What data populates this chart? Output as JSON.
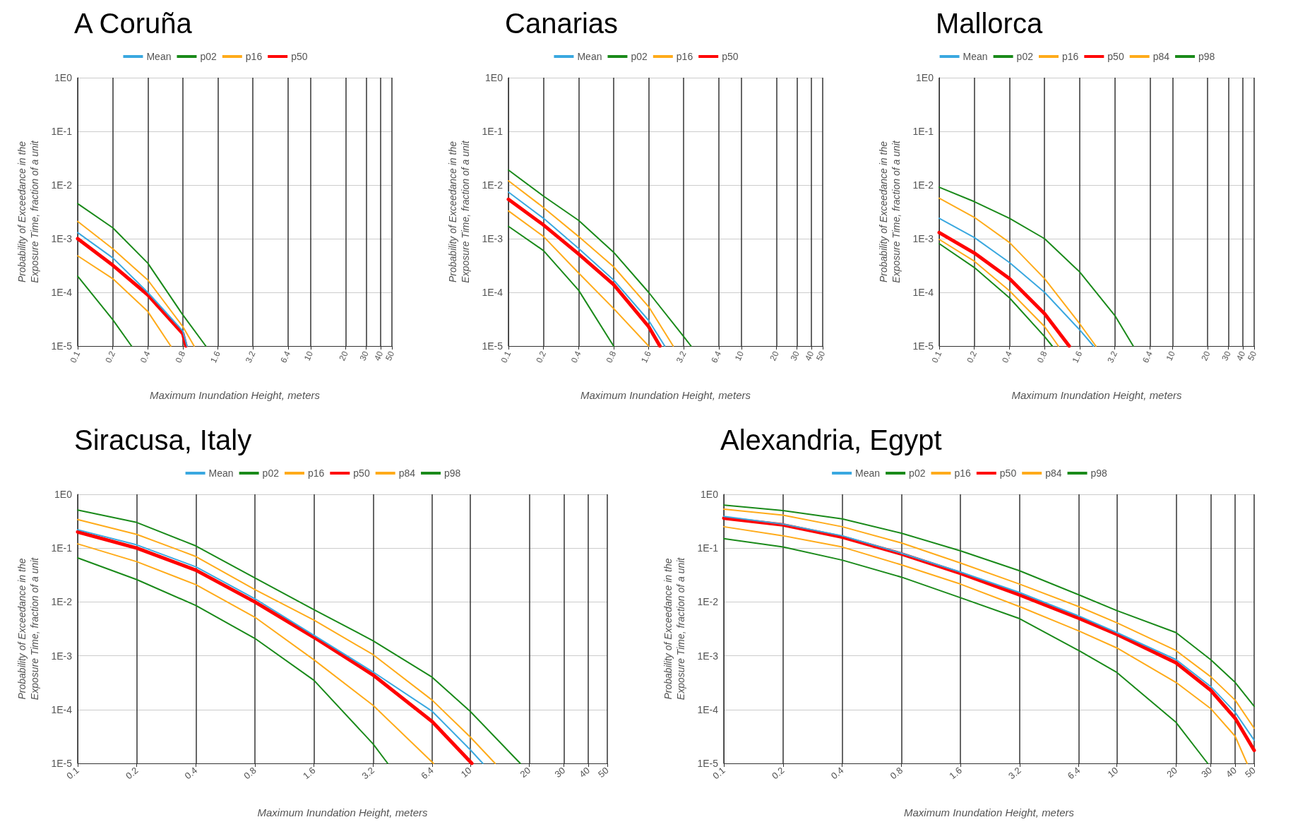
{
  "chart_data": [
    {
      "type": "line",
      "title": "A Coruña",
      "xlabel": "Maximum Inundation Height, meters",
      "ylabel": "Probability of Exceedance in the Exposure Time, fraction of a unit",
      "log": "xy",
      "grid": true,
      "legend": "top",
      "xlim": [
        0.1,
        50
      ],
      "ylim": [
        1e-05,
        1
      ],
      "xticks": [
        0.1,
        0.2,
        0.4,
        0.8,
        1.6,
        3.2,
        6.4,
        10,
        20,
        30,
        40,
        50
      ],
      "yticks": [
        {
          "value": 1,
          "label": "1E0"
        },
        {
          "value": 0.1,
          "label": "1E-1"
        },
        {
          "value": 0.01,
          "label": "1E-2"
        },
        {
          "value": 0.001,
          "label": "1E-3"
        },
        {
          "value": 0.0001,
          "label": "1E-4"
        },
        {
          "value": 1e-05,
          "label": "1E-5"
        }
      ],
      "series": [
        {
          "name": "Mean",
          "color": "#3aa8e0",
          "x": [
            0.1,
            0.2,
            0.4,
            0.8,
            0.87
          ],
          "values": [
            0.0013,
            0.00044,
            0.0001,
            1.9e-05,
            1e-05
          ]
        },
        {
          "name": "p02",
          "color": "#1a8a1a",
          "x": [
            0.1,
            0.2,
            0.29
          ],
          "values": [
            0.0002,
            3.1e-05,
            1e-05
          ]
        },
        {
          "name": "p16",
          "color": "#ffab1a",
          "x": [
            0.1,
            0.2,
            0.4,
            0.63
          ],
          "values": [
            0.00048,
            0.00018,
            4.4e-05,
            1e-05
          ]
        },
        {
          "name": "p50",
          "color": "#ff0000",
          "x": [
            0.1,
            0.2,
            0.4,
            0.8,
            0.85
          ],
          "values": [
            0.001,
            0.00032,
            9e-05,
            1.7e-05,
            1e-05
          ]
        },
        {
          "color": "#ffab1a",
          "x": [
            0.1,
            0.2,
            0.4,
            0.8,
            1.0
          ],
          "values": [
            0.0021,
            0.00065,
            0.00017,
            2.3e-05,
            1e-05
          ]
        },
        {
          "color": "#1a8a1a",
          "x": [
            0.1,
            0.2,
            0.4,
            0.8,
            1.26
          ],
          "values": [
            0.0045,
            0.0016,
            0.00035,
            3.8e-05,
            1e-05
          ]
        }
      ]
    },
    {
      "type": "line",
      "title": "Canarias",
      "xlabel": "Maximum Inundation Height, meters",
      "ylabel": "Probability of Exceedance in the Exposure Time, fraction of a unit",
      "log": "xy",
      "grid": true,
      "legend": "top",
      "xlim": [
        0.1,
        50
      ],
      "ylim": [
        1e-05,
        1
      ],
      "xticks": [
        0.1,
        0.2,
        0.4,
        0.8,
        1.6,
        3.2,
        6.4,
        10,
        20,
        30,
        40,
        50
      ],
      "yticks": [
        {
          "value": 1,
          "label": "1E0"
        },
        {
          "value": 0.1,
          "label": "1E-1"
        },
        {
          "value": 0.01,
          "label": "1E-2"
        },
        {
          "value": 0.001,
          "label": "1E-3"
        },
        {
          "value": 0.0001,
          "label": "1E-4"
        },
        {
          "value": 1e-05,
          "label": "1E-5"
        }
      ],
      "series": [
        {
          "name": "Mean",
          "color": "#3aa8e0",
          "x": [
            0.1,
            0.2,
            0.4,
            0.8,
            1.6,
            2.2
          ],
          "values": [
            0.0074,
            0.0024,
            0.00066,
            0.00017,
            3e-05,
            1e-05
          ]
        },
        {
          "name": "p02",
          "color": "#1a8a1a",
          "x": [
            0.1,
            0.2,
            0.4,
            0.8
          ],
          "values": [
            0.0017,
            0.0006,
            0.00011,
            1e-05
          ]
        },
        {
          "name": "p16",
          "color": "#ffab1a",
          "x": [
            0.1,
            0.2,
            0.4,
            0.8,
            1.6
          ],
          "values": [
            0.0033,
            0.0011,
            0.00023,
            5e-05,
            1e-05
          ]
        },
        {
          "name": "p50",
          "color": "#ff0000",
          "x": [
            0.1,
            0.2,
            0.4,
            0.8,
            1.6,
            2.0
          ],
          "values": [
            0.0054,
            0.0018,
            0.00052,
            0.00014,
            2.3e-05,
            1e-05
          ]
        },
        {
          "color": "#ffab1a",
          "x": [
            0.1,
            0.2,
            0.4,
            0.8,
            1.6,
            2.6
          ],
          "values": [
            0.012,
            0.0038,
            0.0011,
            0.0003,
            5.4e-05,
            1e-05
          ]
        },
        {
          "color": "#1a8a1a",
          "x": [
            0.1,
            0.2,
            0.4,
            0.8,
            1.6,
            3.2,
            3.7
          ],
          "values": [
            0.019,
            0.0062,
            0.0022,
            0.00056,
            0.0001,
            1.5e-05,
            1e-05
          ]
        }
      ]
    },
    {
      "type": "line",
      "title": "Mallorca",
      "xlabel": "Maximum Inundation Height, meters",
      "ylabel": "Probability of Exceedance in the Exposure Time, fraction of a unit",
      "log": "xy",
      "grid": true,
      "legend": "top",
      "xlim": [
        0.1,
        50
      ],
      "ylim": [
        1e-05,
        1
      ],
      "xticks": [
        0.1,
        0.2,
        0.4,
        0.8,
        1.6,
        3.2,
        6.4,
        10,
        20,
        30,
        40,
        50
      ],
      "yticks": [
        {
          "value": 1,
          "label": "1E0"
        },
        {
          "value": 0.1,
          "label": "1E-1"
        },
        {
          "value": 0.01,
          "label": "1E-2"
        },
        {
          "value": 0.001,
          "label": "1E-3"
        },
        {
          "value": 0.0001,
          "label": "1E-4"
        },
        {
          "value": 1e-05,
          "label": "1E-5"
        }
      ],
      "series": [
        {
          "name": "Mean",
          "color": "#3aa8e0",
          "x": [
            0.1,
            0.2,
            0.4,
            0.8,
            1.6,
            2.1
          ],
          "values": [
            0.0024,
            0.00105,
            0.00036,
            0.0001,
            2e-05,
            1e-05
          ]
        },
        {
          "name": "p02",
          "color": "#1a8a1a",
          "x": [
            0.1,
            0.2,
            0.4,
            0.8,
            0.93
          ],
          "values": [
            0.00081,
            0.00029,
            7.9e-05,
            1.5e-05,
            1e-05
          ]
        },
        {
          "name": "p16",
          "color": "#ffab1a",
          "x": [
            0.1,
            0.2,
            0.4,
            0.8,
            1.05
          ],
          "values": [
            0.00097,
            0.00038,
            0.000107,
            2.3e-05,
            1e-05
          ]
        },
        {
          "name": "p50",
          "color": "#ff0000",
          "x": [
            0.1,
            0.2,
            0.4,
            0.8,
            1.3
          ],
          "values": [
            0.0013,
            0.00054,
            0.00018,
            4e-05,
            1e-05
          ]
        },
        {
          "name": "p84",
          "color": "#ffab1a",
          "x": [
            0.1,
            0.2,
            0.4,
            0.8,
            1.6,
            2.2
          ],
          "values": [
            0.0057,
            0.0025,
            0.00085,
            0.00018,
            2.6e-05,
            1e-05
          ]
        },
        {
          "name": "p98",
          "color": "#1a8a1a",
          "x": [
            0.1,
            0.2,
            0.4,
            0.8,
            1.6,
            3.2,
            4.6
          ],
          "values": [
            0.0091,
            0.0049,
            0.0024,
            0.001,
            0.00024,
            3.7e-05,
            1e-05
          ]
        }
      ]
    },
    {
      "type": "line",
      "title": "Siracusa, Italy",
      "xlabel": "Maximum Inundation Height, meters",
      "ylabel": "Probability of Exceedance in the Exposure Time, fraction of a unit",
      "log": "xy",
      "grid": true,
      "legend": "top",
      "xlim": [
        0.1,
        50
      ],
      "ylim": [
        1e-05,
        1
      ],
      "xticks": [
        0.1,
        0.2,
        0.4,
        0.8,
        1.6,
        3.2,
        6.4,
        10,
        20,
        30,
        40,
        50
      ],
      "yticks": [
        {
          "value": 1,
          "label": "1E0"
        },
        {
          "value": 0.1,
          "label": "1E-1"
        },
        {
          "value": 0.01,
          "label": "1E-2"
        },
        {
          "value": 0.001,
          "label": "1E-3"
        },
        {
          "value": 0.0001,
          "label": "1E-4"
        },
        {
          "value": 1e-05,
          "label": "1E-5"
        }
      ],
      "series": [
        {
          "name": "Mean",
          "color": "#3aa8e0",
          "x": [
            0.1,
            0.2,
            0.4,
            0.8,
            1.6,
            3.2,
            6.4,
            10,
            11.6
          ],
          "values": [
            0.22,
            0.115,
            0.045,
            0.0115,
            0.0024,
            0.0005,
            9.3e-05,
            1.8e-05,
            1e-05
          ]
        },
        {
          "name": "p02",
          "color": "#1a8a1a",
          "x": [
            0.1,
            0.2,
            0.4,
            0.8,
            1.6,
            3.2,
            3.8
          ],
          "values": [
            0.066,
            0.026,
            0.0086,
            0.0021,
            0.00035,
            2.3e-05,
            1e-05
          ]
        },
        {
          "name": "p16",
          "color": "#ffab1a",
          "x": [
            0.1,
            0.2,
            0.4,
            0.8,
            1.6,
            3.2,
            6.5
          ],
          "values": [
            0.12,
            0.056,
            0.021,
            0.0052,
            0.00084,
            0.00012,
            1e-05
          ]
        },
        {
          "name": "p50",
          "color": "#ff0000",
          "x": [
            0.1,
            0.2,
            0.4,
            0.8,
            1.6,
            3.2,
            6.4,
            10.2
          ],
          "values": [
            0.2,
            0.1,
            0.039,
            0.01,
            0.0022,
            0.00044,
            6e-05,
            1e-05
          ]
        },
        {
          "name": "p84",
          "color": "#ffab1a",
          "x": [
            0.1,
            0.2,
            0.4,
            0.8,
            1.6,
            3.2,
            6.4,
            10,
            13.4
          ],
          "values": [
            0.34,
            0.18,
            0.07,
            0.017,
            0.0046,
            0.00105,
            0.00015,
            3.1e-05,
            1e-05
          ]
        },
        {
          "name": "p98",
          "color": "#1a8a1a",
          "x": [
            0.1,
            0.2,
            0.4,
            0.8,
            1.6,
            3.2,
            6.4,
            10,
            18
          ],
          "values": [
            0.51,
            0.3,
            0.11,
            0.028,
            0.0072,
            0.0019,
            0.0004,
            9.3e-05,
            1e-05
          ]
        }
      ]
    },
    {
      "type": "line",
      "title": "Alexandria, Egypt",
      "xlabel": "Maximum Inundation Height, meters",
      "ylabel": "Probability of Exceedance in the Exposure Time, fraction of a unit",
      "log": "xy",
      "grid": true,
      "legend": "top",
      "xlim": [
        0.1,
        50
      ],
      "ylim": [
        1e-05,
        1
      ],
      "xticks": [
        0.1,
        0.2,
        0.4,
        0.8,
        1.6,
        3.2,
        6.4,
        10,
        20,
        30,
        40,
        50
      ],
      "yticks": [
        {
          "value": 1,
          "label": "1E0"
        },
        {
          "value": 0.1,
          "label": "1E-1"
        },
        {
          "value": 0.01,
          "label": "1E-2"
        },
        {
          "value": 0.001,
          "label": "1E-3"
        },
        {
          "value": 0.0001,
          "label": "1E-4"
        },
        {
          "value": 1e-05,
          "label": "1E-5"
        }
      ],
      "series": [
        {
          "name": "Mean",
          "color": "#3aa8e0",
          "x": [
            0.1,
            0.2,
            0.4,
            0.8,
            1.6,
            3.2,
            6.4,
            10,
            20,
            30,
            40,
            50
          ],
          "values": [
            0.39,
            0.28,
            0.17,
            0.081,
            0.036,
            0.015,
            0.0055,
            0.0027,
            0.00085,
            0.00027,
            8.9e-05,
            2.7e-05
          ]
        },
        {
          "name": "p02",
          "color": "#1a8a1a",
          "x": [
            0.1,
            0.2,
            0.4,
            0.8,
            1.6,
            3.2,
            6.4,
            10,
            20,
            29
          ],
          "values": [
            0.15,
            0.105,
            0.06,
            0.029,
            0.012,
            0.0049,
            0.00125,
            0.00049,
            5.8e-05,
            1e-05
          ]
        },
        {
          "name": "p16",
          "color": "#ffab1a",
          "x": [
            0.1,
            0.2,
            0.4,
            0.8,
            1.6,
            3.2,
            6.4,
            10,
            20,
            30,
            40,
            46
          ],
          "values": [
            0.25,
            0.17,
            0.105,
            0.049,
            0.0215,
            0.0082,
            0.0029,
            0.0014,
            0.00032,
            0.000105,
            3.2e-05,
            1e-05
          ]
        },
        {
          "name": "p50",
          "color": "#ff0000",
          "x": [
            0.1,
            0.2,
            0.4,
            0.8,
            1.6,
            3.2,
            6.4,
            10,
            20,
            30,
            40,
            50
          ],
          "values": [
            0.36,
            0.27,
            0.16,
            0.078,
            0.034,
            0.0135,
            0.005,
            0.0025,
            0.00074,
            0.00023,
            6.9e-05,
            1.75e-05
          ]
        },
        {
          "name": "p84",
          "color": "#ffab1a",
          "x": [
            0.1,
            0.2,
            0.4,
            0.8,
            1.6,
            3.2,
            6.4,
            10,
            20,
            30,
            40,
            50
          ],
          "values": [
            0.53,
            0.41,
            0.25,
            0.125,
            0.053,
            0.0215,
            0.0082,
            0.0041,
            0.00125,
            0.00041,
            0.00015,
            4.5e-05
          ]
        },
        {
          "name": "p98",
          "color": "#1a8a1a",
          "x": [
            0.1,
            0.2,
            0.4,
            0.8,
            1.6,
            3.2,
            6.4,
            10,
            20,
            30,
            40,
            50
          ],
          "values": [
            0.63,
            0.5,
            0.35,
            0.19,
            0.089,
            0.038,
            0.0136,
            0.0069,
            0.0027,
            0.00085,
            0.00032,
            0.000115
          ]
        }
      ]
    }
  ]
}
